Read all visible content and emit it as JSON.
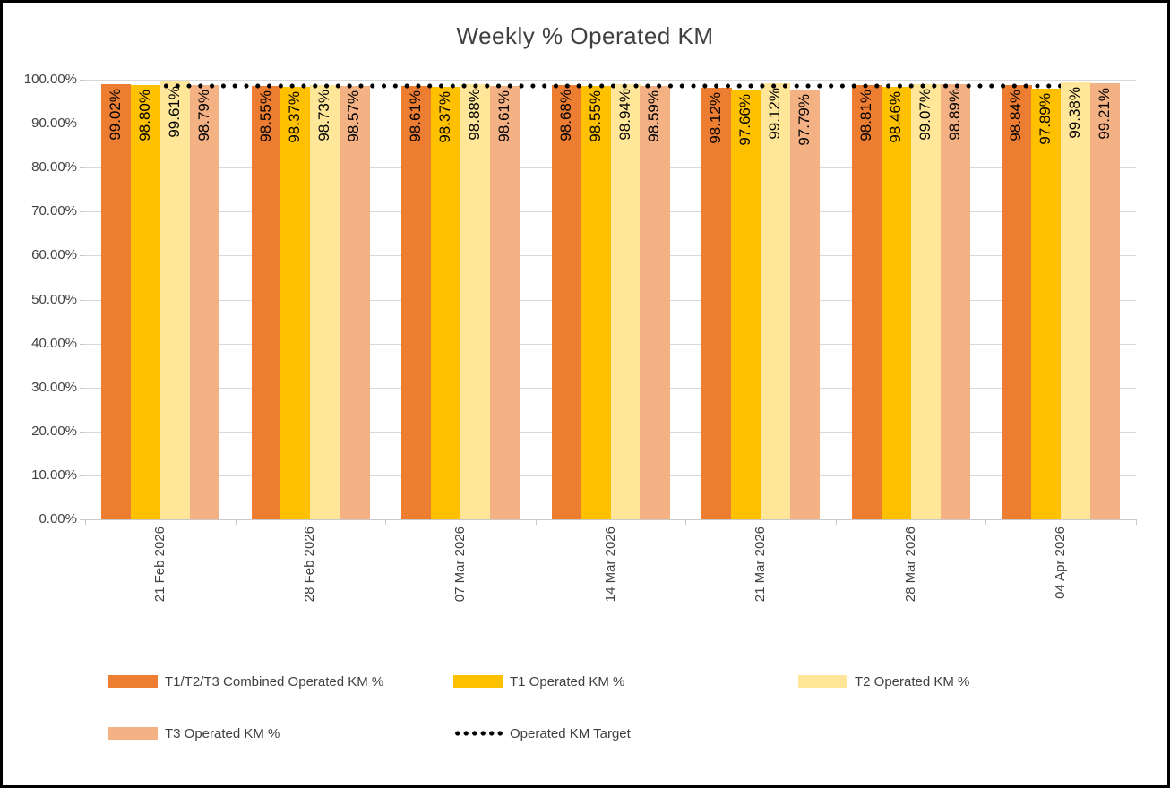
{
  "chart_data": {
    "type": "bar",
    "title": "Weekly % Operated KM",
    "categories": [
      "21 Feb 2026",
      "28 Feb 2026",
      "07 Mar 2026",
      "14 Mar 2026",
      "21 Mar 2026",
      "28 Mar 2026",
      "04 Apr 2026"
    ],
    "series": [
      {
        "name": "T1/T2/T3 Combined Operated KM %",
        "color": "#ED7D31",
        "values": [
          99.02,
          98.55,
          98.61,
          98.68,
          98.12,
          98.81,
          98.84
        ]
      },
      {
        "name": "T1 Operated KM %",
        "color": "#FFC000",
        "values": [
          98.8,
          98.37,
          98.37,
          98.55,
          97.66,
          98.46,
          97.89
        ]
      },
      {
        "name": "T2 Operated KM %",
        "color": "#FFE699",
        "values": [
          99.61,
          98.73,
          98.88,
          98.94,
          99.12,
          99.07,
          99.38
        ]
      },
      {
        "name": "T3 Operated KM %",
        "color": "#F4B183",
        "values": [
          98.79,
          98.57,
          98.61,
          98.59,
          97.79,
          98.89,
          99.21
        ]
      }
    ],
    "target_line": {
      "name": "Operated KM Target",
      "value": 98.5,
      "color": "#000000",
      "style": "dotted"
    },
    "data_labels": {
      "format": "0.00%",
      "values": [
        [
          "99.02%",
          "98.55%",
          "98.61%",
          "98.68%",
          "98.12%",
          "98.81%",
          "98.84%"
        ],
        [
          "98.80%",
          "98.37%",
          "98.37%",
          "98.55%",
          "97.66%",
          "98.46%",
          "97.89%"
        ],
        [
          "99.61%",
          "98.73%",
          "98.88%",
          "98.94%",
          "99.12%",
          "99.07%",
          "99.38%"
        ],
        [
          "98.79%",
          "98.57%",
          "98.61%",
          "98.59%",
          "97.79%",
          "98.89%",
          "99.21%"
        ]
      ]
    },
    "y_axis": {
      "min": 0,
      "max": 100,
      "step": 10,
      "tick_labels": [
        "100.00%",
        "90.00%",
        "80.00%",
        "70.00%",
        "60.00%",
        "50.00%",
        "40.00%",
        "30.00%",
        "20.00%",
        "10.00%",
        "0.00%"
      ]
    },
    "x_axis": {
      "label_rotation": "vertical"
    },
    "legend": {
      "position": "bottom",
      "rows": 2
    },
    "grid": {
      "visible": true,
      "color": "#D9D9D9"
    }
  }
}
